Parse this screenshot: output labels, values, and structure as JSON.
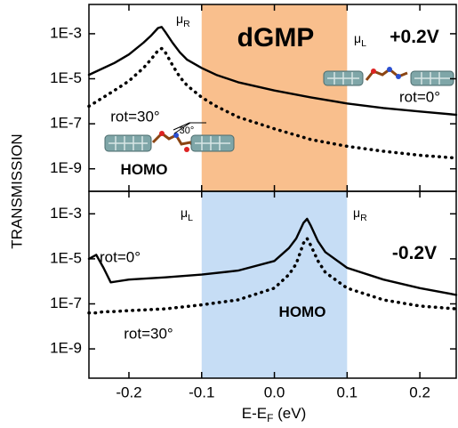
{
  "chart_data": [
    {
      "type": "line",
      "log_y": true,
      "ylabel": "TRANSMISSION",
      "xlim": [
        -0.255,
        0.25
      ],
      "ylim": [
        1e-10,
        0.02
      ],
      "yticks": [
        {
          "value": 0.001,
          "label": "1E-3"
        },
        {
          "value": 1e-05,
          "label": "1E-5"
        },
        {
          "value": 1e-07,
          "label": "1E-7"
        },
        {
          "value": 1e-09,
          "label": "1E-9"
        }
      ],
      "shaded": {
        "x": [
          -0.1,
          0.1
        ],
        "color": "#f9bf8d"
      },
      "x": [
        -0.255,
        -0.24,
        -0.22,
        -0.2,
        -0.18,
        -0.17,
        -0.16,
        -0.155,
        -0.15,
        -0.14,
        -0.13,
        -0.12,
        -0.1,
        -0.08,
        -0.05,
        0,
        0.05,
        0.1,
        0.15,
        0.2,
        0.25
      ],
      "series": [
        {
          "name": "rot=0°",
          "color": "#000000",
          "dash": false,
          "values": [
            1.5e-05,
            2.5e-05,
            5e-05,
            0.00012,
            0.0004,
            0.0008,
            0.0018,
            0.002,
            0.0012,
            0.0004,
            0.00015,
            7e-05,
            3e-05,
            1.5e-05,
            7e-06,
            3e-06,
            1.5e-06,
            8e-07,
            5e-07,
            3.5e-07,
            2.5e-07
          ]
        },
        {
          "name": "rot=30°",
          "color": "#000000",
          "dash": true,
          "values": [
            6e-07,
            1.2e-06,
            3e-06,
            8e-06,
            3e-05,
            7e-05,
            0.00018,
            0.00022,
            0.00015,
            4e-05,
            1.2e-05,
            5e-06,
            1.5e-06,
            6e-07,
            2e-07,
            6e-08,
            2e-08,
            1e-08,
            6e-09,
            4e-09,
            3e-09
          ]
        }
      ],
      "annotations": [
        {
          "text": "μ",
          "subscript": "R"
        },
        {
          "text": "dGMP"
        },
        {
          "text": "μ",
          "subscript": "L"
        },
        {
          "text": "+0.2V"
        },
        {
          "text": "30°"
        },
        {
          "text": "HOMO"
        }
      ]
    },
    {
      "type": "line",
      "log_y": true,
      "xlabel": {
        "text": "E-E",
        "subscript": "F",
        "suffix": " (eV)"
      },
      "xlim": [
        -0.255,
        0.25
      ],
      "ylim": [
        5e-11,
        0.01
      ],
      "xticks": [
        -0.2,
        -0.1,
        {
          "value": 0,
          "label": "0.0"
        },
        0.1,
        0.2
      ],
      "yticks": [
        {
          "value": 0.001,
          "label": "1E-3"
        },
        {
          "value": 1e-05,
          "label": "1E-5"
        },
        {
          "value": 1e-07,
          "label": "1E-7"
        },
        {
          "value": 1e-09,
          "label": "1E-9"
        }
      ],
      "shaded": {
        "x": [
          -0.1,
          0.1
        ],
        "color": "#c6ddf5"
      },
      "x": [
        -0.255,
        -0.245,
        -0.235,
        -0.225,
        -0.2,
        -0.15,
        -0.1,
        -0.05,
        0,
        0.02,
        0.03,
        0.04,
        0.045,
        0.05,
        0.06,
        0.07,
        0.1,
        0.15,
        0.2,
        0.25
      ],
      "series": [
        {
          "name": "rot=0°",
          "color": "#000000",
          "dash": false,
          "values": [
            1e-05,
            1.5e-05,
            4e-06,
            9e-07,
            1.2e-06,
            1.5e-06,
            2e-06,
            3e-06,
            8e-06,
            3e-05,
            8e-05,
            0.0004,
            0.0006,
            0.0003,
            6e-05,
            2e-05,
            4e-06,
            1.2e-06,
            5e-07,
            2.5e-07
          ]
        },
        {
          "name": "rot=30°",
          "color": "#000000",
          "dash": true,
          "values": [
            4e-08,
            4e-08,
            4.5e-08,
            4.5e-08,
            5e-08,
            6e-08,
            9e-08,
            1.5e-07,
            5e-07,
            2e-06,
            6e-06,
            5e-05,
            8e-05,
            4e-05,
            8e-06,
            2.5e-06,
            5e-07,
            1.5e-07,
            8e-08,
            6e-08
          ]
        }
      ],
      "annotations": [
        {
          "text": "μ",
          "subscript": "L"
        },
        {
          "text": "μ",
          "subscript": "R"
        },
        {
          "text": "-0.2V"
        },
        {
          "text": "HOMO"
        }
      ]
    }
  ]
}
